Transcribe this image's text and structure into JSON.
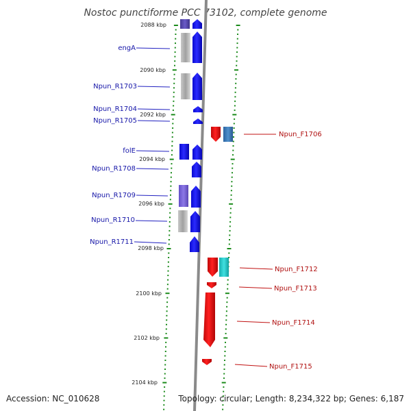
{
  "title": "Nostoc punctiforme PCC 73102, complete genome",
  "accession_text": "Accession: NC_010628",
  "topology_text": "Topology: circular; Length: 8,234,322 bp; Genes: 6,187",
  "kbp_labels": [
    "2088 kbp",
    "2090 kbp",
    "2092 kbp",
    "2094 kbp",
    "2096 kbp",
    "2098 kbp",
    "2100 kbp",
    "2102 kbp",
    "2104 kbp"
  ],
  "left_gene_labels": [
    "engA",
    "Npun_R1703",
    "Npun_R1704",
    "Npun_R1705",
    "folE",
    "Npun_R1708",
    "Npun_R1709",
    "Npun_R1710",
    "Npun_R1711"
  ],
  "right_gene_labels": [
    "Npun_F1706",
    "Npun_F1712",
    "Npun_F1713",
    "Npun_F1714",
    "Npun_F1715"
  ],
  "colors": {
    "reverse_gene": "#1010f0",
    "forward_gene": "#ee1010",
    "backbone": "#888888",
    "tick": "#1a8a1a",
    "left_label": "#1515a8",
    "right_label": "#b01010",
    "cog_gray": "#b4b4b4",
    "cog_purple": "#5a4aaa",
    "cog_violet": "#7a62d6",
    "cog_steel": "#3c78b4",
    "cog_cyan": "#20c4c4"
  }
}
